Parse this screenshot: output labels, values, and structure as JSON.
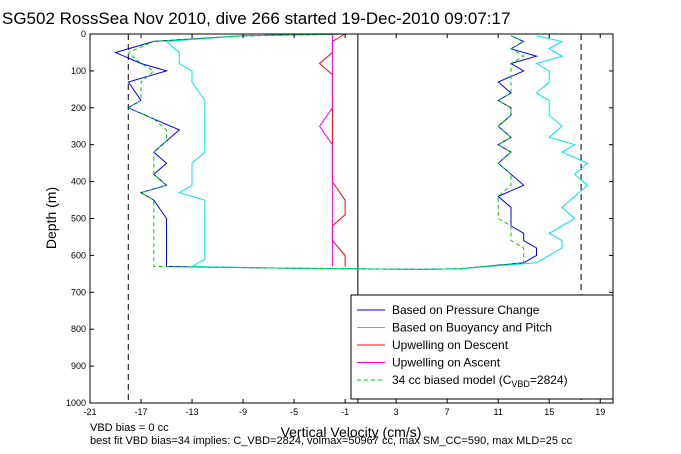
{
  "chart_data": {
    "type": "line",
    "title": "SG502 RossSea Nov 2010, dive 266 started 19-Dec-2010 09:07:17",
    "xlabel": "Vertical Velocity (cm/s)",
    "ylabel": "Depth (m)",
    "xlim": [
      -21,
      20
    ],
    "ylim": [
      0,
      1000
    ],
    "y_reversed": true,
    "xticks": [
      -21,
      -17,
      -13,
      -9,
      -5,
      -1,
      3,
      7,
      11,
      15,
      19
    ],
    "yticks": [
      0,
      100,
      200,
      300,
      400,
      500,
      600,
      700,
      800,
      900,
      1000
    ],
    "grid": false,
    "legend_position": "bottom-right",
    "series": [
      {
        "name": "Based on Pressure Change",
        "color": "#0000ff",
        "style": "solid",
        "points": [
          [
            -1,
            0
          ],
          [
            -9,
            5
          ],
          [
            -16,
            20
          ],
          [
            -19,
            50
          ],
          [
            -17,
            80
          ],
          [
            -15,
            100
          ],
          [
            -18,
            130
          ],
          [
            -17,
            180
          ],
          [
            -18,
            200
          ],
          [
            -16,
            230
          ],
          [
            -14,
            260
          ],
          [
            -15,
            290
          ],
          [
            -16,
            320
          ],
          [
            -15,
            350
          ],
          [
            -16,
            380
          ],
          [
            -15,
            410
          ],
          [
            -17,
            430
          ],
          [
            -16,
            450
          ],
          [
            -15,
            500
          ],
          [
            -15,
            540
          ],
          [
            -15,
            580
          ],
          [
            -15,
            610
          ],
          [
            -15,
            630
          ],
          [
            -5,
            635
          ],
          [
            5,
            638
          ],
          [
            8,
            636
          ],
          [
            13,
            620
          ],
          [
            14,
            600
          ],
          [
            14,
            580
          ],
          [
            13,
            560
          ],
          [
            13,
            540
          ],
          [
            12,
            520
          ],
          [
            12,
            500
          ],
          [
            12,
            470
          ],
          [
            11,
            440
          ],
          [
            13,
            410
          ],
          [
            12,
            380
          ],
          [
            11,
            350
          ],
          [
            12,
            320
          ],
          [
            11,
            300
          ],
          [
            12,
            280
          ],
          [
            11,
            250
          ],
          [
            12,
            220
          ],
          [
            12,
            200
          ],
          [
            11,
            180
          ],
          [
            12,
            160
          ],
          [
            11,
            130
          ],
          [
            13,
            100
          ],
          [
            12,
            80
          ],
          [
            14,
            60
          ],
          [
            12,
            40
          ],
          [
            13,
            20
          ],
          [
            12,
            5
          ]
        ]
      },
      {
        "name": "Based on Buoyancy and Pitch",
        "color": "#00e6e6",
        "style": "solid",
        "points": [
          [
            -1,
            0
          ],
          [
            -9,
            5
          ],
          [
            -15,
            20
          ],
          [
            -14,
            50
          ],
          [
            -14,
            80
          ],
          [
            -13,
            100
          ],
          [
            -13,
            130
          ],
          [
            -12,
            180
          ],
          [
            -12,
            200
          ],
          [
            -12,
            230
          ],
          [
            -12,
            260
          ],
          [
            -12,
            290
          ],
          [
            -12,
            320
          ],
          [
            -13,
            350
          ],
          [
            -13,
            380
          ],
          [
            -13,
            410
          ],
          [
            -14,
            430
          ],
          [
            -12,
            450
          ],
          [
            -12,
            500
          ],
          [
            -12,
            540
          ],
          [
            -12,
            580
          ],
          [
            -12,
            610
          ],
          [
            -13,
            630
          ],
          [
            -5,
            635
          ],
          [
            5,
            638
          ],
          [
            8,
            636
          ],
          [
            14,
            620
          ],
          [
            15,
            600
          ],
          [
            16,
            580
          ],
          [
            16,
            560
          ],
          [
            15,
            540
          ],
          [
            16,
            520
          ],
          [
            17,
            500
          ],
          [
            16,
            470
          ],
          [
            17,
            440
          ],
          [
            18,
            410
          ],
          [
            17,
            380
          ],
          [
            18,
            350
          ],
          [
            16,
            320
          ],
          [
            17,
            300
          ],
          [
            15,
            280
          ],
          [
            16,
            250
          ],
          [
            15,
            220
          ],
          [
            15,
            200
          ],
          [
            15,
            180
          ],
          [
            14,
            160
          ],
          [
            15,
            130
          ],
          [
            15,
            100
          ],
          [
            14,
            80
          ],
          [
            16,
            60
          ],
          [
            15,
            40
          ],
          [
            16,
            20
          ],
          [
            14,
            5
          ]
        ]
      },
      {
        "name": "Upwelling on Descent",
        "color": "#ff0000",
        "style": "solid",
        "points": [
          [
            -1,
            0
          ],
          [
            -2,
            20
          ],
          [
            -2,
            50
          ],
          [
            -3,
            80
          ],
          [
            -2,
            110
          ],
          [
            -2,
            150
          ],
          [
            -2,
            200
          ],
          [
            -2,
            250
          ],
          [
            -2,
            300
          ],
          [
            -2,
            350
          ],
          [
            -2,
            400
          ],
          [
            -1,
            450
          ],
          [
            -1,
            490
          ],
          [
            -2,
            520
          ],
          [
            -2,
            560
          ],
          [
            -1,
            600
          ],
          [
            -1,
            630
          ]
        ]
      },
      {
        "name": "Upwelling on Ascent",
        "color": "#ff00ff",
        "style": "solid",
        "points": [
          [
            -2,
            630
          ],
          [
            -2,
            600
          ],
          [
            -2,
            560
          ],
          [
            -2,
            520
          ],
          [
            -2,
            480
          ],
          [
            -2,
            440
          ],
          [
            -2,
            400
          ],
          [
            -2,
            350
          ],
          [
            -2,
            300
          ],
          [
            -3,
            250
          ],
          [
            -2,
            200
          ],
          [
            -2,
            150
          ],
          [
            -2,
            100
          ],
          [
            -2,
            60
          ],
          [
            -2,
            30
          ],
          [
            -2,
            0
          ]
        ]
      },
      {
        "name": "34 cc biased model (C_VBD=2824)",
        "color": "#00cc00",
        "style": "dashed",
        "points": [
          [
            -1,
            0
          ],
          [
            -9,
            5
          ],
          [
            -16,
            20
          ],
          [
            -18,
            50
          ],
          [
            -17,
            80
          ],
          [
            -16,
            100
          ],
          [
            -17,
            130
          ],
          [
            -17,
            180
          ],
          [
            -18,
            200
          ],
          [
            -16,
            230
          ],
          [
            -15,
            260
          ],
          [
            -15,
            290
          ],
          [
            -16,
            320
          ],
          [
            -16,
            350
          ],
          [
            -16,
            380
          ],
          [
            -15,
            410
          ],
          [
            -17,
            430
          ],
          [
            -16,
            450
          ],
          [
            -16,
            500
          ],
          [
            -16,
            540
          ],
          [
            -16,
            580
          ],
          [
            -16,
            610
          ],
          [
            -16,
            630
          ],
          [
            -5,
            635
          ],
          [
            5,
            638
          ],
          [
            8,
            636
          ],
          [
            13,
            620
          ],
          [
            13,
            600
          ],
          [
            13,
            580
          ],
          [
            12,
            560
          ],
          [
            12,
            540
          ],
          [
            12,
            520
          ],
          [
            11,
            500
          ],
          [
            11,
            470
          ],
          [
            11,
            440
          ],
          [
            12,
            410
          ],
          [
            12,
            380
          ],
          [
            11,
            350
          ],
          [
            12,
            320
          ],
          [
            11,
            300
          ],
          [
            12,
            280
          ],
          [
            11,
            250
          ],
          [
            12,
            220
          ],
          [
            12,
            200
          ],
          [
            11,
            180
          ],
          [
            12,
            160
          ],
          [
            12,
            130
          ],
          [
            12,
            100
          ],
          [
            12,
            80
          ],
          [
            13,
            60
          ],
          [
            12,
            40
          ],
          [
            13,
            20
          ],
          [
            12,
            5
          ]
        ]
      }
    ],
    "reference_lines": [
      {
        "x": -18,
        "color": "#000000",
        "style": "dashed"
      },
      {
        "x": 17.5,
        "color": "#000000",
        "style": "dashed"
      },
      {
        "x": 0,
        "color": "#000000",
        "style": "solid"
      }
    ],
    "legend_entries": [
      {
        "text": "Based on Pressure Change",
        "color": "#0000ff",
        "style": "solid"
      },
      {
        "text": "Based on Buoyancy and Pitch",
        "color": "#00e6e6",
        "style": "solid"
      },
      {
        "text": "Upwelling on Descent",
        "color": "#ff0000",
        "style": "solid"
      },
      {
        "text": "Upwelling on Ascent",
        "color": "#ff00ff",
        "style": "solid"
      },
      {
        "text": "34 cc biased model (C",
        "sub": "VBD",
        "tail": "=2824)",
        "color": "#00cc00",
        "style": "dashed"
      }
    ],
    "annotations": [
      "VBD bias = 0 cc",
      "best fit VBD bias=34 implies: C_VBD=2824, volmax=50967 cc, max SM_CC=590, max MLD=25 cc"
    ]
  }
}
